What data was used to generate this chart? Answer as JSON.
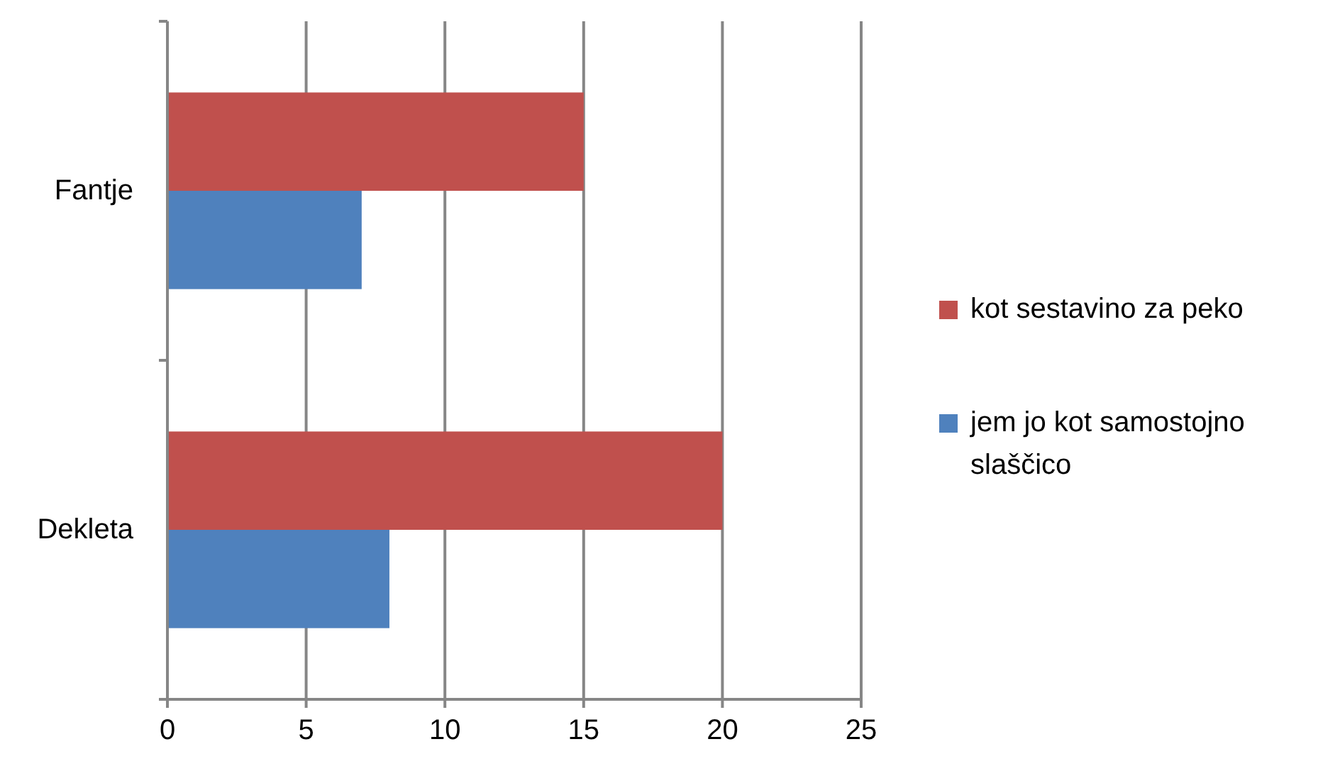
{
  "chart_data": {
    "type": "bar",
    "orientation": "horizontal",
    "categories": [
      "Fantje",
      "Dekleta"
    ],
    "series": [
      {
        "name": "kot sestavino za peko",
        "color": "#c0504d",
        "values": [
          15,
          20
        ]
      },
      {
        "name": "jem jo kot samostojno slaščico",
        "color": "#4f81bd",
        "values": [
          7,
          8
        ]
      }
    ],
    "xlim": [
      0,
      25
    ],
    "xticks": [
      0,
      5,
      10,
      15,
      20,
      25
    ],
    "grid": "x",
    "legend": "right"
  }
}
